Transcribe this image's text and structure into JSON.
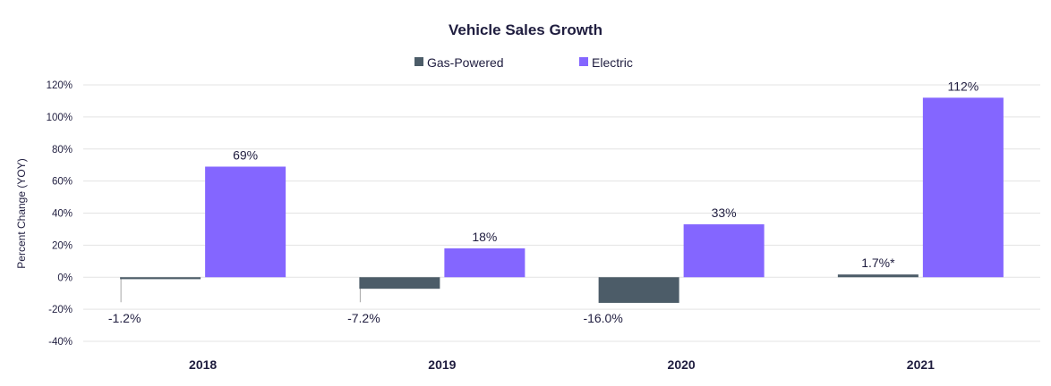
{
  "chart_data": {
    "type": "bar",
    "title": "Vehicle Sales Growth",
    "xlabel": "",
    "ylabel": "Percent Change (YOY)",
    "ylim": [
      -40,
      120
    ],
    "yticks": [
      -40,
      -20,
      0,
      20,
      40,
      60,
      80,
      100,
      120
    ],
    "tick_labels": [
      "-40%",
      "-20%",
      "0%",
      "20%",
      "40%",
      "60%",
      "80%",
      "100%",
      "120%"
    ],
    "grid": true,
    "legend_position": "top-center",
    "categories": [
      "2018",
      "2019",
      "2020",
      "2021"
    ],
    "series": [
      {
        "name": "Gas-Powered",
        "color": "#4c5c68",
        "values": [
          -1.2,
          -7.2,
          -16.0,
          1.7
        ],
        "labels": [
          "-1.2%",
          "-7.2%",
          "-16.0%",
          "1.7%*"
        ]
      },
      {
        "name": "Electric",
        "color": "#8466ff",
        "values": [
          69,
          18,
          33,
          112
        ],
        "labels": [
          "69%",
          "18%",
          "33%",
          "112%"
        ]
      }
    ]
  }
}
